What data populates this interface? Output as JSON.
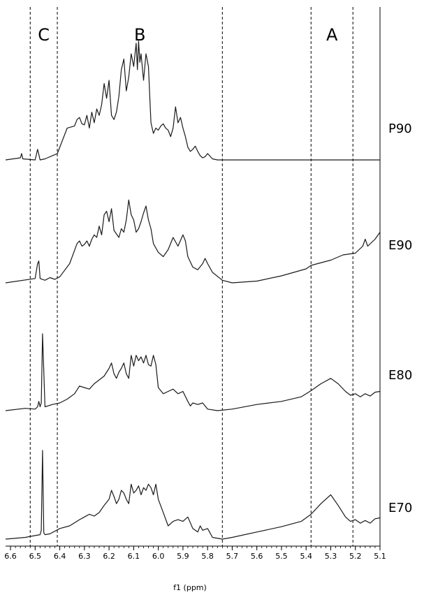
{
  "chart_data": {
    "type": "line",
    "title": "",
    "xlabel": "f1 (ppm)",
    "ylabel": "",
    "xlim": [
      6.62,
      5.1
    ],
    "x_reversed": true,
    "grid": false,
    "x_ticks": [
      "6.6",
      "6.5",
      "6.4",
      "6.3",
      "6.2",
      "6.1",
      "6.0",
      "5.9",
      "5.8",
      "5.7",
      "5.6",
      "5.5",
      "5.4",
      "5.3",
      "5.2",
      "5.1"
    ],
    "regions": [
      {
        "label": "C",
        "from": 6.52,
        "to": 6.41
      },
      {
        "label": "B",
        "from": 6.41,
        "to": 5.74
      },
      {
        "label": "A",
        "from": 5.38,
        "to": 5.21
      }
    ],
    "series": [
      {
        "name": "P90",
        "x": [
          6.62,
          6.56,
          6.555,
          6.55,
          6.5,
          6.49,
          6.48,
          6.46,
          6.41,
          6.37,
          6.34,
          6.33,
          6.32,
          6.31,
          6.3,
          6.29,
          6.28,
          6.27,
          6.26,
          6.25,
          6.24,
          6.23,
          6.22,
          6.21,
          6.2,
          6.19,
          6.18,
          6.17,
          6.16,
          6.15,
          6.14,
          6.13,
          6.12,
          6.11,
          6.1,
          6.09,
          6.085,
          6.08,
          6.075,
          6.07,
          6.06,
          6.05,
          6.04,
          6.03,
          6.02,
          6.01,
          6.0,
          5.99,
          5.98,
          5.97,
          5.96,
          5.95,
          5.94,
          5.93,
          5.92,
          5.91,
          5.9,
          5.89,
          5.88,
          5.87,
          5.86,
          5.85,
          5.84,
          5.83,
          5.82,
          5.81,
          5.8,
          5.78,
          5.76,
          5.74,
          5.5,
          5.3,
          5.1
        ],
        "y": [
          0,
          0.02,
          0.06,
          0.01,
          0,
          0.1,
          0,
          0.01,
          0.06,
          0.3,
          0.32,
          0.38,
          0.4,
          0.34,
          0.33,
          0.42,
          0.3,
          0.45,
          0.35,
          0.48,
          0.42,
          0.52,
          0.72,
          0.58,
          0.75,
          0.42,
          0.38,
          0.45,
          0.6,
          0.85,
          0.95,
          0.65,
          0.78,
          1.0,
          0.88,
          1.1,
          0.85,
          1.12,
          0.92,
          1.0,
          0.75,
          1.0,
          0.88,
          0.35,
          0.25,
          0.3,
          0.28,
          0.32,
          0.34,
          0.3,
          0.28,
          0.22,
          0.3,
          0.5,
          0.35,
          0.4,
          0.3,
          0.22,
          0.12,
          0.08,
          0.1,
          0.13,
          0.08,
          0.04,
          0.02,
          0.03,
          0.06,
          0.01,
          0,
          0,
          0,
          0,
          0
        ]
      },
      {
        "name": "E90",
        "x": [
          6.62,
          6.5,
          6.49,
          6.485,
          6.48,
          6.46,
          6.44,
          6.42,
          6.4,
          6.36,
          6.33,
          6.32,
          6.31,
          6.3,
          6.29,
          6.28,
          6.27,
          6.26,
          6.25,
          6.24,
          6.23,
          6.22,
          6.21,
          6.2,
          6.19,
          6.18,
          6.17,
          6.16,
          6.15,
          6.14,
          6.13,
          6.12,
          6.11,
          6.1,
          6.09,
          6.08,
          6.07,
          6.06,
          6.05,
          6.04,
          6.03,
          6.02,
          6.0,
          5.98,
          5.96,
          5.94,
          5.92,
          5.9,
          5.89,
          5.88,
          5.86,
          5.84,
          5.82,
          5.81,
          5.8,
          5.78,
          5.74,
          5.7,
          5.6,
          5.5,
          5.45,
          5.4,
          5.38,
          5.3,
          5.25,
          5.2,
          5.17,
          5.16,
          5.15,
          5.12,
          5.1
        ],
        "y": [
          0,
          0.05,
          0.22,
          0.25,
          0.05,
          0.03,
          0.06,
          0.04,
          0.07,
          0.22,
          0.45,
          0.48,
          0.42,
          0.44,
          0.48,
          0.42,
          0.5,
          0.55,
          0.52,
          0.65,
          0.55,
          0.78,
          0.82,
          0.7,
          0.85,
          0.6,
          0.56,
          0.52,
          0.62,
          0.58,
          0.72,
          0.95,
          0.78,
          0.72,
          0.58,
          0.62,
          0.7,
          0.8,
          0.88,
          0.72,
          0.62,
          0.45,
          0.35,
          0.3,
          0.38,
          0.52,
          0.42,
          0.55,
          0.48,
          0.3,
          0.18,
          0.15,
          0.22,
          0.28,
          0.22,
          0.12,
          0.03,
          0,
          0.02,
          0.08,
          0.12,
          0.16,
          0.2,
          0.26,
          0.32,
          0.34,
          0.42,
          0.5,
          0.42,
          0.5,
          0.58
        ]
      },
      {
        "name": "E80",
        "x": [
          6.62,
          6.54,
          6.5,
          6.49,
          6.485,
          6.48,
          6.475,
          6.47,
          6.46,
          6.43,
          6.4,
          6.37,
          6.34,
          6.32,
          6.3,
          6.28,
          6.26,
          6.24,
          6.22,
          6.2,
          6.19,
          6.18,
          6.17,
          6.16,
          6.15,
          6.14,
          6.13,
          6.12,
          6.11,
          6.1,
          6.09,
          6.08,
          6.07,
          6.06,
          6.05,
          6.04,
          6.03,
          6.02,
          6.01,
          6.0,
          5.98,
          5.96,
          5.94,
          5.92,
          5.9,
          5.88,
          5.87,
          5.86,
          5.84,
          5.82,
          5.8,
          5.76,
          5.7,
          5.6,
          5.5,
          5.42,
          5.38,
          5.34,
          5.3,
          5.27,
          5.24,
          5.22,
          5.2,
          5.18,
          5.16,
          5.14,
          5.12,
          5.1
        ],
        "y": [
          0,
          0.03,
          0.02,
          0.05,
          0.12,
          0.05,
          0.1,
          1.0,
          0.05,
          0.08,
          0.1,
          0.15,
          0.22,
          0.32,
          0.3,
          0.28,
          0.35,
          0.4,
          0.45,
          0.55,
          0.62,
          0.48,
          0.42,
          0.5,
          0.55,
          0.62,
          0.48,
          0.42,
          0.72,
          0.58,
          0.72,
          0.65,
          0.7,
          0.62,
          0.72,
          0.6,
          0.58,
          0.72,
          0.6,
          0.3,
          0.22,
          0.25,
          0.28,
          0.22,
          0.25,
          0.12,
          0.06,
          0.1,
          0.08,
          0.1,
          0.02,
          0,
          0.02,
          0.08,
          0.12,
          0.18,
          0.26,
          0.35,
          0.42,
          0.35,
          0.25,
          0.2,
          0.22,
          0.18,
          0.22,
          0.19,
          0.24,
          0.25
        ]
      },
      {
        "name": "E70",
        "x": [
          6.62,
          6.54,
          6.5,
          6.48,
          6.475,
          6.47,
          6.465,
          6.46,
          6.44,
          6.4,
          6.36,
          6.32,
          6.3,
          6.28,
          6.26,
          6.24,
          6.22,
          6.2,
          6.19,
          6.18,
          6.17,
          6.16,
          6.15,
          6.14,
          6.13,
          6.12,
          6.11,
          6.1,
          6.09,
          6.08,
          6.07,
          6.06,
          6.05,
          6.04,
          6.03,
          6.02,
          6.01,
          6.0,
          5.98,
          5.96,
          5.94,
          5.92,
          5.9,
          5.88,
          5.86,
          5.84,
          5.83,
          5.82,
          5.8,
          5.78,
          5.74,
          5.7,
          5.6,
          5.5,
          5.42,
          5.38,
          5.34,
          5.3,
          5.27,
          5.24,
          5.22,
          5.2,
          5.18,
          5.16,
          5.14,
          5.12,
          5.1
        ],
        "y": [
          0,
          0.02,
          0.04,
          0.05,
          0.1,
          1.0,
          0.07,
          0.05,
          0.06,
          0.12,
          0.15,
          0.22,
          0.25,
          0.28,
          0.26,
          0.3,
          0.38,
          0.45,
          0.55,
          0.48,
          0.4,
          0.45,
          0.55,
          0.52,
          0.45,
          0.4,
          0.62,
          0.52,
          0.55,
          0.6,
          0.5,
          0.58,
          0.55,
          0.62,
          0.58,
          0.5,
          0.62,
          0.45,
          0.3,
          0.15,
          0.2,
          0.22,
          0.2,
          0.25,
          0.12,
          0.08,
          0.15,
          0.1,
          0.12,
          0.02,
          0,
          0.02,
          0.08,
          0.14,
          0.2,
          0.28,
          0.4,
          0.5,
          0.38,
          0.25,
          0.2,
          0.22,
          0.18,
          0.21,
          0.18,
          0.23,
          0.24
        ]
      }
    ]
  }
}
